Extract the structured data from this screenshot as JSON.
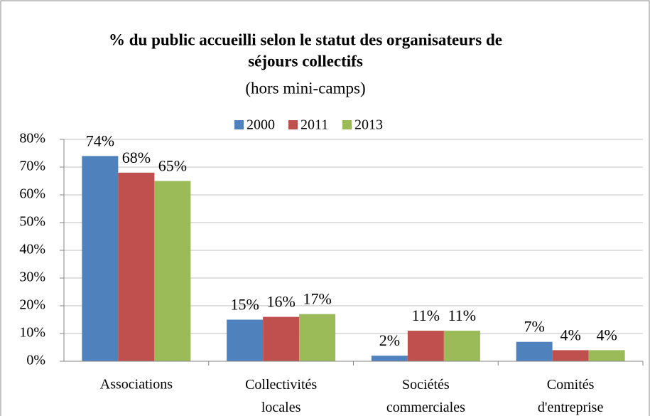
{
  "chart_data": {
    "type": "bar",
    "title": [
      "% du public accueilli selon le statut des organisateurs de",
      "séjours collectifs"
    ],
    "subtitle": "(hors mini-camps)",
    "categories": [
      "Associations",
      "Collectivités locales",
      "Sociétés commerciales",
      "Comités d'entreprise"
    ],
    "series": [
      {
        "name": "2000",
        "color": "#4f81bd",
        "values": [
          74,
          15,
          2,
          7
        ],
        "value_labels": [
          "74%",
          "15%",
          "2%",
          "7%"
        ]
      },
      {
        "name": "2011",
        "color": "#c0504d",
        "values": [
          68,
          16,
          11,
          4
        ],
        "value_labels": [
          "68%",
          "16%",
          "11%",
          "4%"
        ]
      },
      {
        "name": "2013",
        "color": "#9bbb59",
        "values": [
          65,
          17,
          11,
          4
        ],
        "value_labels": [
          "65%",
          "17%",
          "11%",
          "4%"
        ]
      }
    ],
    "ylim": [
      0,
      80
    ],
    "yticks": [
      {
        "value": 0,
        "label": "0%"
      },
      {
        "value": 10,
        "label": "10%"
      },
      {
        "value": 20,
        "label": "20%"
      },
      {
        "value": 30,
        "label": "30%"
      },
      {
        "value": 40,
        "label": "40%"
      },
      {
        "value": 50,
        "label": "50%"
      },
      {
        "value": 60,
        "label": "60%"
      },
      {
        "value": 70,
        "label": "70%"
      },
      {
        "value": 80,
        "label": "80%"
      }
    ],
    "grid": true,
    "legend": "top"
  }
}
